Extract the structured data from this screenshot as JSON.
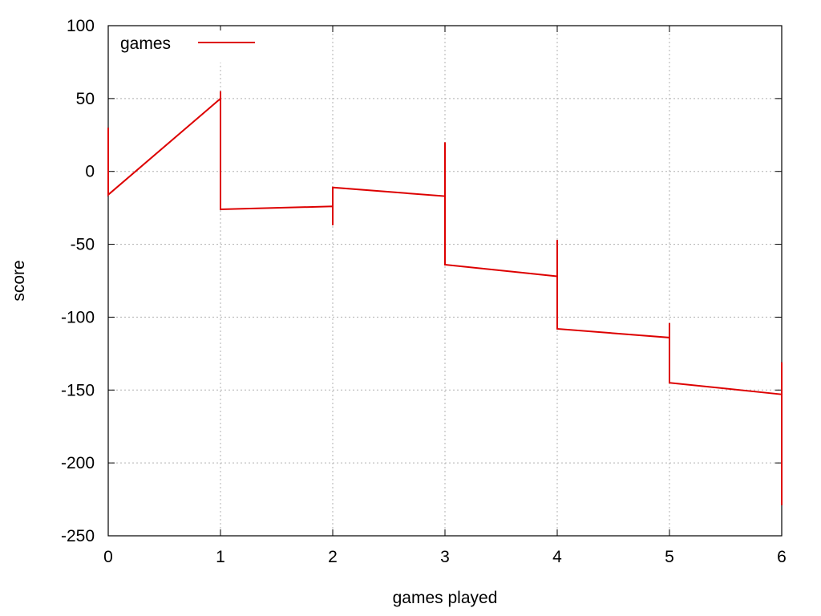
{
  "chart_data": {
    "type": "line",
    "xlabel": "games played",
    "ylabel": "score",
    "xlim": [
      0,
      6
    ],
    "ylim": [
      -250,
      100
    ],
    "x_ticks": [
      0,
      1,
      2,
      3,
      4,
      5,
      6
    ],
    "y_ticks": [
      -250,
      -200,
      -150,
      -100,
      -50,
      0,
      50,
      100
    ],
    "grid": true,
    "legend_position": "top-left",
    "series": [
      {
        "name": "games",
        "color": "#dd0000",
        "points": [
          [
            0,
            30
          ],
          [
            0,
            -16
          ],
          [
            1,
            50
          ],
          [
            1,
            55
          ],
          [
            1,
            50
          ],
          [
            1,
            -26
          ],
          [
            2,
            -24
          ],
          [
            2,
            -37
          ],
          [
            2,
            -24
          ],
          [
            2,
            -11
          ],
          [
            3,
            -17
          ],
          [
            3,
            20
          ],
          [
            3,
            -17
          ],
          [
            3,
            -64
          ],
          [
            4,
            -72
          ],
          [
            4,
            -47
          ],
          [
            4,
            -72
          ],
          [
            4,
            -108
          ],
          [
            5,
            -114
          ],
          [
            5,
            -104
          ],
          [
            5,
            -114
          ],
          [
            5,
            -145
          ],
          [
            6,
            -153
          ],
          [
            6,
            -131
          ],
          [
            6,
            -229
          ],
          [
            6,
            -153
          ]
        ]
      }
    ]
  }
}
